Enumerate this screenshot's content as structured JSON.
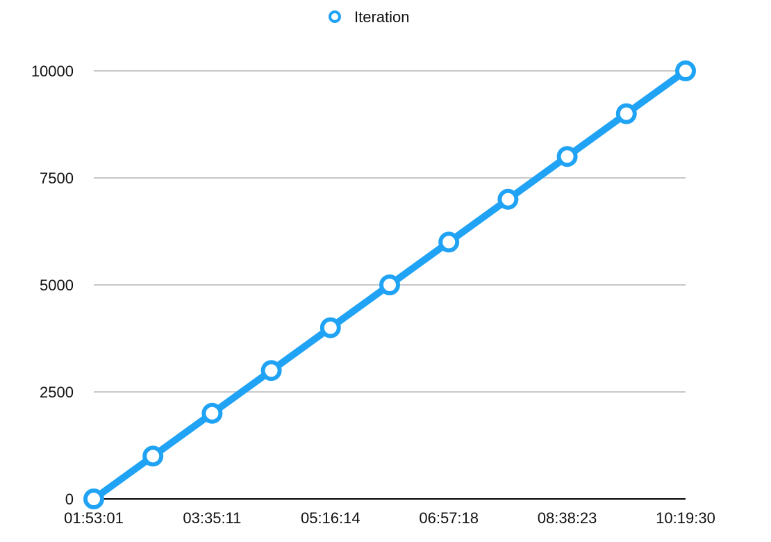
{
  "chart_data": {
    "type": "line",
    "categories": [
      "01:53:01",
      "",
      "03:35:11",
      "",
      "05:16:14",
      "",
      "06:57:18",
      "",
      "08:38:23",
      "",
      "10:19:30"
    ],
    "series": [
      {
        "name": "Iteration",
        "values": [
          0,
          1000,
          2000,
          3000,
          4000,
          5000,
          6000,
          7000,
          8000,
          9000,
          10000
        ]
      }
    ],
    "xlabel": "",
    "ylabel": "",
    "ylim": [
      0,
      10000
    ],
    "yticks": [
      0,
      2500,
      5000,
      7500,
      10000
    ],
    "grid": true,
    "legend_position": "top-center",
    "colors": {
      "series": "#20a3f4",
      "marker_fill": "#ffffff",
      "grid": "#c8c8c8",
      "axis": "#000000"
    }
  }
}
